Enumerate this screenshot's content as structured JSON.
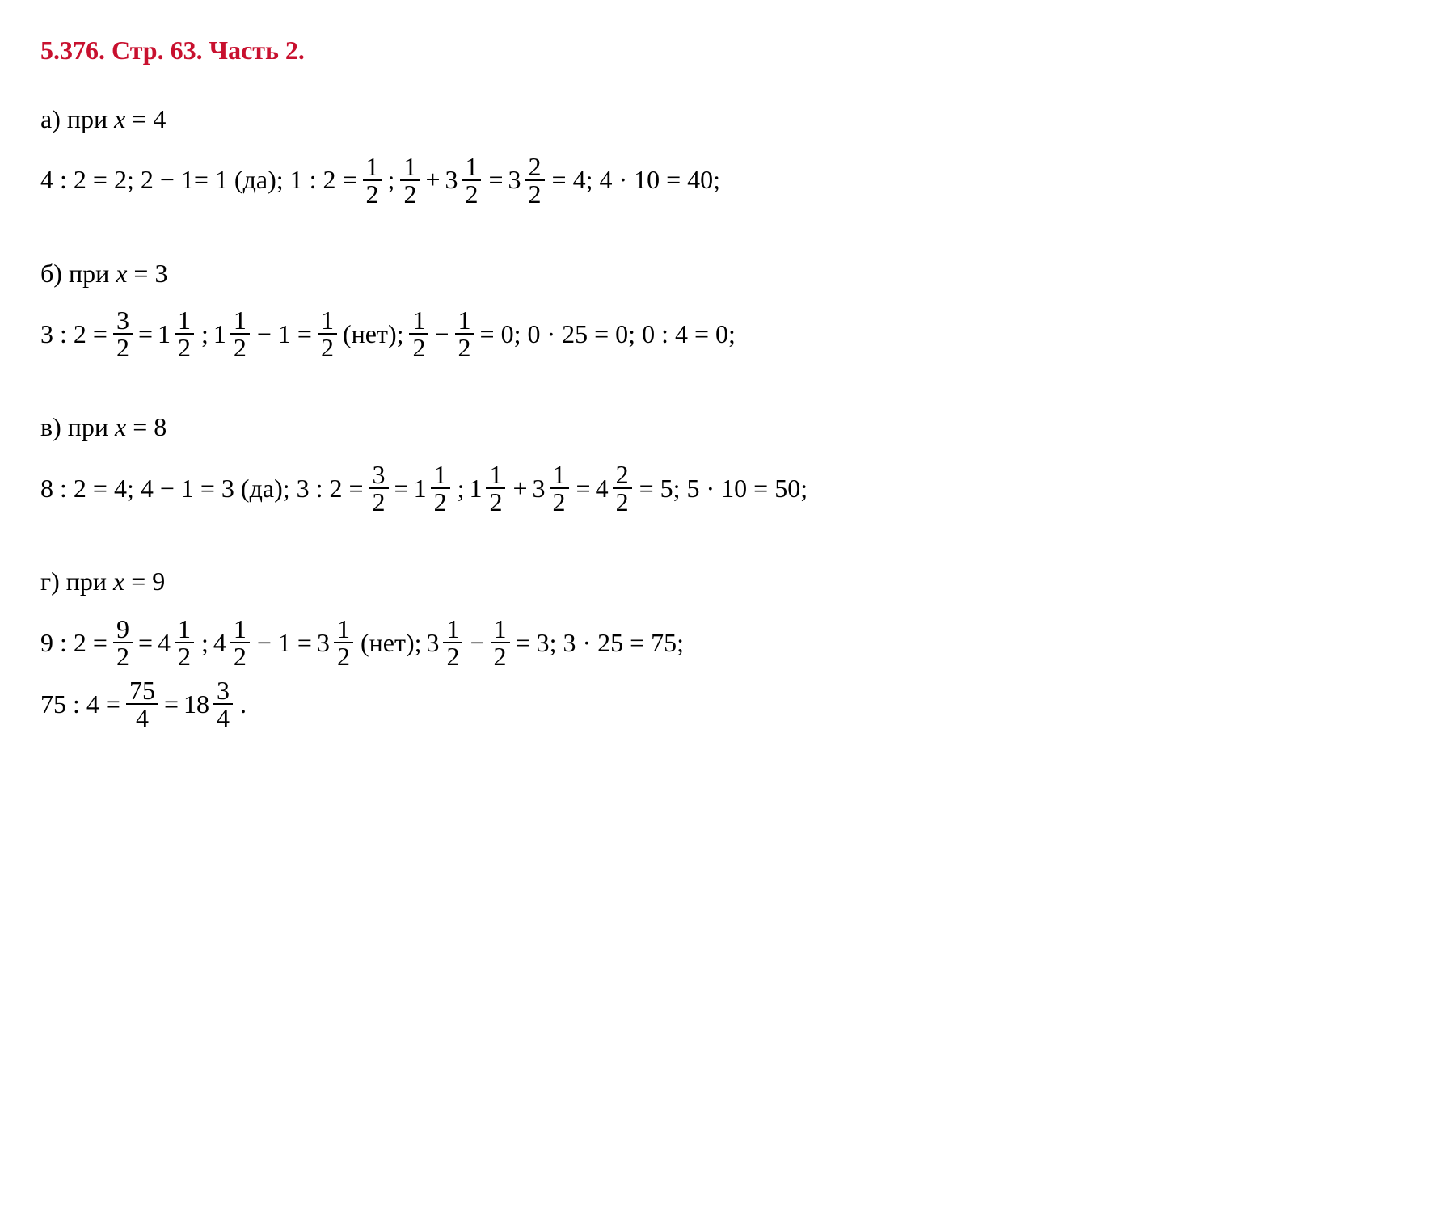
{
  "title": "5.376. Стр. 63. Часть 2.",
  "sections": {
    "a": {
      "label": "а) при",
      "var": "x",
      "eq": "= 4",
      "parts": [
        "4 : 2 = 2; 2 − 1= 1 (да); 1 : 2 =",
        "frac:1/2",
        ";",
        "frac:1/2",
        "+",
        "mixed:3:1/2",
        "=",
        "mixed:3:2/2",
        "= 4; 4 · 10 = 40;"
      ]
    },
    "b": {
      "label": "б) при",
      "var": "x",
      "eq": "= 3",
      "parts": [
        "3 : 2 =",
        "frac:3/2",
        "=",
        "mixed:1:1/2",
        ";",
        "mixed:1:1/2",
        "− 1 =",
        "frac:1/2",
        "(нет);",
        "frac:1/2",
        "−",
        "frac:1/2",
        "= 0; 0 · 25 = 0; 0 : 4 = 0;"
      ]
    },
    "c": {
      "label": "в) при",
      "var": "x",
      "eq": "= 8",
      "parts": [
        "8 : 2 = 4; 4 − 1 = 3 (да); 3 : 2 =",
        "frac:3/2",
        "=",
        "mixed:1:1/2",
        ";",
        "mixed:1:1/2",
        "+",
        "mixed:3:1/2",
        "=",
        "mixed:4:2/2",
        "= 5; 5 · 10 = 50;"
      ]
    },
    "d": {
      "label": "г) при",
      "var": "x",
      "eq": "= 9",
      "line1": [
        "9 : 2 =",
        "frac:9/2",
        "=",
        "mixed:4:1/2",
        ";",
        "mixed:4:1/2",
        "− 1 =",
        "mixed:3:1/2",
        "(нет);",
        "mixed:3:1/2",
        "−",
        "frac:1/2",
        "= 3; 3 · 25 = 75;"
      ],
      "line2": [
        "75 : 4 =",
        "frac:75/4",
        "=",
        "mixed:18:3/4",
        "."
      ]
    }
  }
}
